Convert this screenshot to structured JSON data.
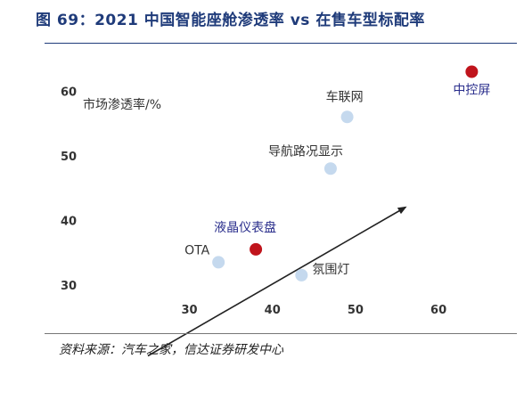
{
  "header": {
    "title": "图 69：2021 中国智能座舱渗透率 vs 在售车型标配率"
  },
  "footer": {
    "source": "资料来源：汽车之家，信达证券研发中心"
  },
  "colors": {
    "title": "#1f3b7a",
    "highlight_point": "#c0141c",
    "normal_point": "#c5d9ee",
    "highlight_label": "#2a2e8c",
    "normal_label": "#333333",
    "arrow": "#222222"
  },
  "chart_data": {
    "type": "scatter",
    "ylabel": "市场渗透率/%",
    "xlim": [
      22,
      66
    ],
    "ylim": [
      25,
      65
    ],
    "xticks": [
      30,
      40,
      50,
      60
    ],
    "yticks": [
      30,
      40,
      50,
      60
    ],
    "grid": false,
    "points": [
      {
        "label": "中控屏",
        "x": 64,
        "y": 63,
        "highlight": true
      },
      {
        "label": "车联网",
        "x": 49,
        "y": 56,
        "highlight": false
      },
      {
        "label": "导航路况显示",
        "x": 47,
        "y": 48,
        "highlight": false
      },
      {
        "label": "液晶仪表盘",
        "x": 38,
        "y": 35.5,
        "highlight": true
      },
      {
        "label": "OTA",
        "x": 33.5,
        "y": 33.5,
        "highlight": false
      },
      {
        "label": "氛围灯",
        "x": 43.5,
        "y": 31.5,
        "highlight": false
      }
    ],
    "trend_arrow": {
      "from": {
        "x": 25,
        "y": 19
      },
      "to": {
        "x": 56,
        "y": 42
      }
    }
  }
}
